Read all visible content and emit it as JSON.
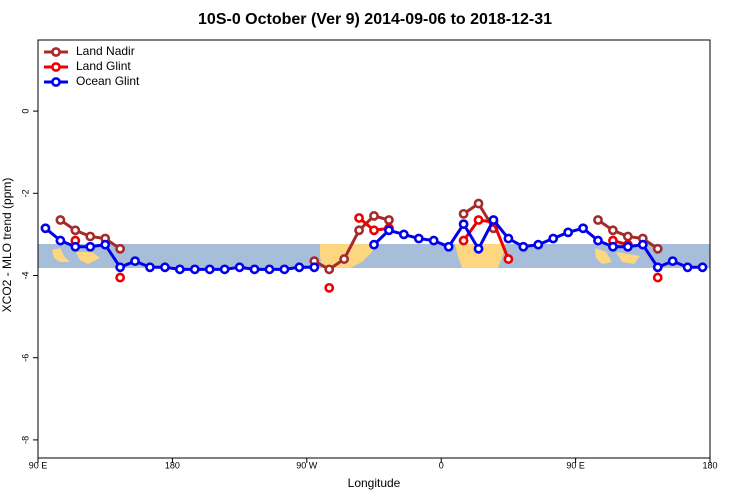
{
  "chart_data": {
    "type": "line",
    "title": "10S-0 October (Ver 9)   2014-09-06 to 2018-12-31",
    "xlabel": "Longitude",
    "ylabel": "XCO2 - MLO trend (ppm)",
    "x": [
      95,
      105,
      115,
      125,
      135,
      145,
      155,
      165,
      175,
      185,
      195,
      205,
      215,
      225,
      235,
      245,
      255,
      265,
      275,
      285,
      295,
      305,
      315,
      325,
      335,
      345,
      355,
      365,
      375,
      385,
      395,
      405,
      415,
      425,
      435,
      445,
      455,
      465,
      475,
      485,
      495,
      505,
      515,
      525,
      535
    ],
    "series": [
      {
        "name": "Land Nadir",
        "color": "#a52a2a",
        "values": [
          null,
          -2.65,
          -2.9,
          -3.05,
          -3.1,
          -3.35,
          null,
          null,
          null,
          null,
          null,
          null,
          null,
          null,
          null,
          null,
          null,
          null,
          -3.65,
          -3.85,
          -3.6,
          -2.9,
          -2.55,
          -2.65,
          null,
          null,
          null,
          null,
          -2.5,
          -2.25,
          -2.85,
          null,
          null,
          null,
          null,
          null,
          null,
          -2.65,
          -2.9,
          -3.05,
          -3.1,
          -3.35,
          null,
          null,
          null
        ]
      },
      {
        "name": "Land Glint",
        "color": "#ee0000",
        "values": [
          null,
          null,
          -3.15,
          null,
          null,
          -4.05,
          null,
          null,
          null,
          null,
          null,
          null,
          null,
          null,
          null,
          null,
          null,
          null,
          null,
          -4.3,
          null,
          -2.6,
          -2.9,
          -2.85,
          null,
          null,
          null,
          null,
          -3.15,
          -2.65,
          -2.7,
          -3.6,
          null,
          null,
          null,
          null,
          null,
          null,
          -3.15,
          -3.25,
          null,
          -4.05,
          null,
          null,
          null
        ]
      },
      {
        "name": "Ocean Glint",
        "color": "#0000ee",
        "values": [
          -2.85,
          -3.15,
          -3.3,
          -3.3,
          -3.25,
          -3.8,
          -3.65,
          -3.8,
          -3.8,
          -3.85,
          -3.85,
          -3.85,
          -3.85,
          -3.8,
          -3.85,
          -3.85,
          -3.85,
          -3.8,
          -3.8,
          null,
          null,
          null,
          -3.25,
          -2.9,
          -3.0,
          -3.1,
          -3.15,
          -3.3,
          -2.75,
          -3.35,
          -2.65,
          -3.1,
          -3.3,
          -3.25,
          -3.1,
          -2.95,
          -2.85,
          -3.15,
          -3.3,
          -3.3,
          -3.25,
          -3.8,
          -3.65,
          -3.8,
          -3.8
        ]
      }
    ],
    "xlim": [
      90,
      540
    ],
    "xticks": [
      {
        "value": 90,
        "label": "90 E"
      },
      180,
      {
        "value": 270,
        "label": "90 W"
      },
      {
        "value": 360,
        "label": "0"
      },
      {
        "value": 450,
        "label": "90 E"
      },
      {
        "value": 540,
        "label": "180"
      }
    ],
    "ylim": [
      -8.44,
      1.73
    ],
    "yticks": [
      -8,
      -6,
      -4,
      -2,
      0
    ],
    "legend": "top-left"
  }
}
